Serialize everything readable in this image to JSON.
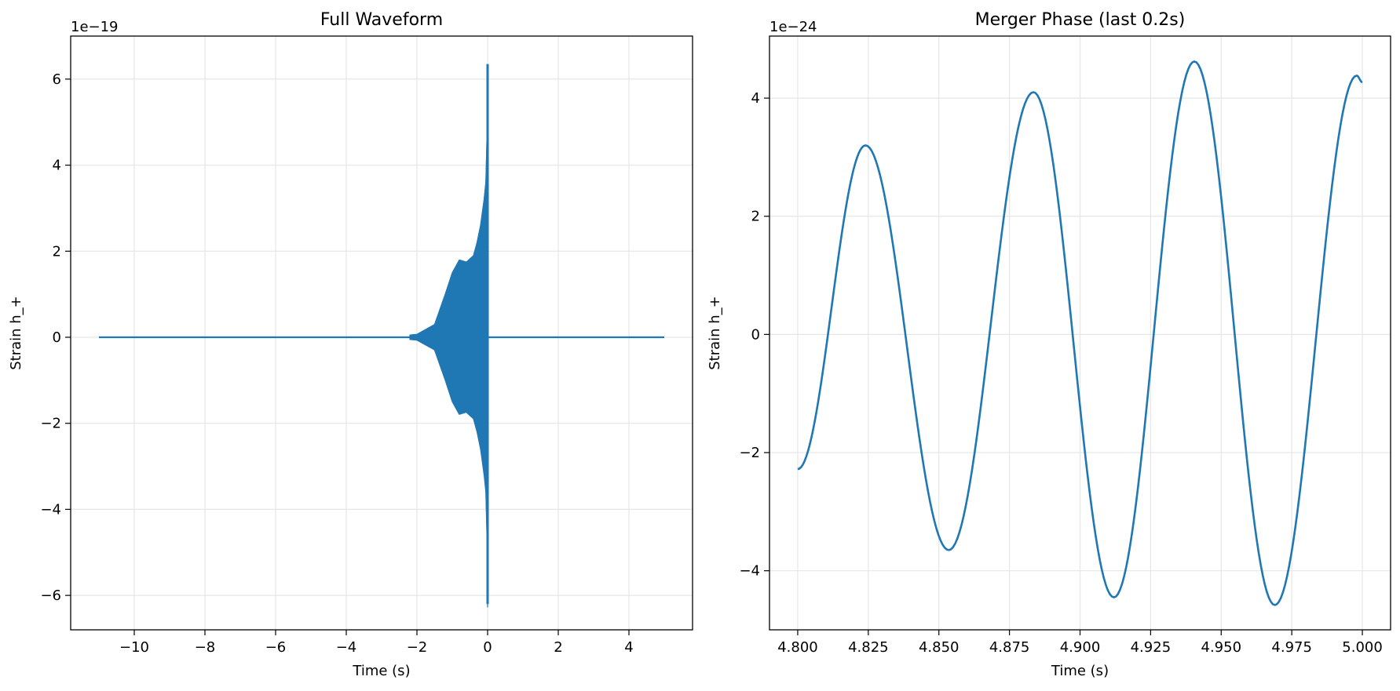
{
  "chart_data": [
    {
      "type": "line",
      "title": "Full Waveform",
      "xlabel": "Time (s)",
      "ylabel": "Strain h_+",
      "y_offset_label": "1e−19",
      "xlim": [
        -11.8,
        5.8
      ],
      "ylim": [
        -6.8,
        7.0
      ],
      "xticks": [
        -10,
        -8,
        -6,
        -4,
        -2,
        0,
        2,
        4
      ],
      "xtick_labels": [
        "−10",
        "−8",
        "−6",
        "−4",
        "−2",
        "0",
        "2",
        "4"
      ],
      "yticks": [
        -6,
        -4,
        -2,
        0,
        2,
        4,
        6
      ],
      "ytick_labels": [
        "−6",
        "−4",
        "−2",
        "0",
        "2",
        "4",
        "6"
      ],
      "grid": true,
      "color": "#1f77b4",
      "series": [
        {
          "x_range": [
            -11,
            5
          ],
          "merger_time": 0,
          "description_points": {
            "envelope_t": [
              -11,
              -3,
              -2.5,
              -2,
              -1.5,
              -1.2,
              -1.0,
              -0.8,
              -0.6,
              -0.4,
              -0.3,
              -0.2,
              -0.1,
              -0.05,
              -0.02,
              0
            ],
            "envelope_amp": [
              0,
              0.01,
              0.03,
              0.07,
              0.3,
              1.0,
              1.5,
              1.8,
              1.75,
              1.9,
              2.2,
              2.6,
              3.2,
              3.6,
              4.6,
              6.3
            ],
            "peak_max": 6.35,
            "peak_min": -6.2
          }
        }
      ]
    },
    {
      "type": "line",
      "title": "Merger Phase (last 0.2s)",
      "xlabel": "Time (s)",
      "ylabel": "Strain h_+",
      "y_offset_label": "1e−24",
      "xlim": [
        4.79,
        5.01
      ],
      "ylim": [
        -5.0,
        5.05
      ],
      "xticks": [
        4.8,
        4.825,
        4.85,
        4.875,
        4.9,
        4.925,
        4.95,
        4.975,
        5.0
      ],
      "xtick_labels": [
        "4.800",
        "4.825",
        "4.850",
        "4.875",
        "4.900",
        "4.925",
        "4.950",
        "4.975",
        "5.000"
      ],
      "yticks": [
        -4,
        -2,
        0,
        2,
        4
      ],
      "ytick_labels": [
        "−4",
        "−2",
        "0",
        "2",
        "4"
      ],
      "grid": true,
      "color": "#1f77b4",
      "series": [
        {
          "x": [
            4.8,
            4.824,
            4.8535,
            4.8835,
            4.912,
            4.9405,
            4.969,
            4.998,
            5.0
          ],
          "y": [
            -2.28,
            3.2,
            -3.65,
            4.1,
            -4.45,
            4.62,
            -4.58,
            4.38,
            4.27
          ]
        }
      ]
    }
  ]
}
